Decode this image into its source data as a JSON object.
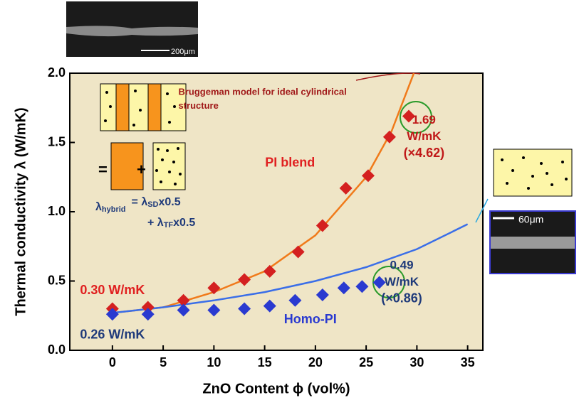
{
  "chart_data": {
    "type": "scatter",
    "xlabel": "ZnO Content ϕ (vol%)",
    "ylabel": "Thermal conductivity λ (W/mK)",
    "xlim": [
      -4.2,
      36.5
    ],
    "ylim": [
      0,
      2.0
    ],
    "xticks": [
      0,
      5,
      10,
      15,
      20,
      25,
      30,
      35
    ],
    "yticks": [
      {
        "value": 0,
        "label": "0.0"
      },
      {
        "value": 0.5,
        "label": "0.5"
      },
      {
        "value": 1.0,
        "label": "1.0"
      },
      {
        "value": 1.5,
        "label": "1.5"
      },
      {
        "value": 2.0,
        "label": "2.0"
      }
    ],
    "background": "#efe5c6",
    "series": [
      {
        "color": "#d42020",
        "x": [
          0,
          3.5,
          7,
          10,
          13,
          15.5,
          18.3,
          20.7,
          23,
          25.2,
          27.3,
          29.2
        ],
        "values": [
          0.3,
          0.31,
          0.36,
          0.45,
          0.51,
          0.57,
          0.71,
          0.9,
          1.17,
          1.26,
          1.54,
          1.69
        ]
      },
      {
        "color": "#2a3ad0",
        "x": [
          0,
          3.5,
          7,
          10,
          13,
          15.5,
          18,
          20.7,
          22.8,
          24.6,
          26.3
        ],
        "values": [
          0.26,
          0.26,
          0.29,
          0.29,
          0.3,
          0.32,
          0.36,
          0.4,
          0.45,
          0.46,
          0.49
        ]
      }
    ],
    "curves": [
      {
        "color": "#f07a1a",
        "x": [
          0,
          5,
          10,
          15,
          20,
          25,
          27.5,
          29.7
        ],
        "values": [
          0.27,
          0.31,
          0.42,
          0.57,
          0.83,
          1.25,
          1.58,
          2.0
        ]
      },
      {
        "color": "#3a6ee8",
        "x": [
          0,
          5,
          10,
          15,
          20,
          25,
          30,
          35
        ],
        "values": [
          0.27,
          0.31,
          0.36,
          0.42,
          0.5,
          0.6,
          0.73,
          0.91
        ]
      }
    ],
    "annotations": [
      {
        "text": "0.30 W/mK",
        "color": "#e02020",
        "x": 0,
        "y": 0.43
      },
      {
        "text": "0.26 W/mK",
        "color": "#1f3a7a",
        "x": 0,
        "y": 0.11
      },
      {
        "text": "1.69",
        "color": "#c01818",
        "x": 30.7,
        "y": 1.66
      },
      {
        "text": "W/mK",
        "color": "#c01818",
        "x": 30.7,
        "y": 1.54
      },
      {
        "text": "(×4.62)",
        "color": "#c01818",
        "x": 30.7,
        "y": 1.42
      },
      {
        "text": "0.49",
        "color": "#1f3a7a",
        "x": 28.5,
        "y": 0.61
      },
      {
        "text": "W/mK",
        "color": "#1f3a7a",
        "x": 28.5,
        "y": 0.49
      },
      {
        "text": "(×0.86)",
        "color": "#1f3a7a",
        "x": 28.5,
        "y": 0.37
      },
      {
        "text": "PI blend",
        "color": "#e02020",
        "x": 17.5,
        "y": 1.35
      },
      {
        "text": "Homo-PI",
        "color": "#2a3ad0",
        "x": 19.5,
        "y": 0.22
      },
      {
        "text": "Bruggeman model for ideal cylindrical",
        "color": "#a01818",
        "x": 6.5,
        "y": 1.86
      },
      {
        "text": "structure",
        "color": "#a01818",
        "x": 6.5,
        "y": 1.76
      }
    ]
  },
  "insets": {
    "scale_top": "200μm",
    "scale_right": "60μm",
    "formula": [
      "λ",
      "hybrid",
      "= λ",
      "SD",
      "x0.5",
      "+ λ",
      "TF",
      "x0.5"
    ]
  }
}
